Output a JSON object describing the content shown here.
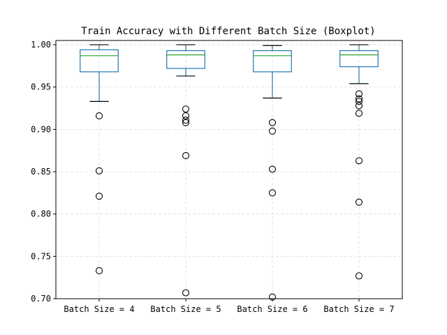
{
  "chart_data": {
    "type": "boxplot",
    "title": "Train Accuracy with Different Batch Size (Boxplot)",
    "xlabel": "",
    "ylabel": "",
    "ylim": [
      0.7,
      1.005
    ],
    "yticks": [
      0.7,
      0.75,
      0.8,
      0.85,
      0.9,
      0.95,
      1.0
    ],
    "ytick_labels": [
      "0.70",
      "0.75",
      "0.80",
      "0.85",
      "0.90",
      "0.95",
      "1.00"
    ],
    "grid": true,
    "categories": [
      "Batch Size = 4",
      "Batch Size = 5",
      "Batch Size = 6",
      "Batch Size = 7"
    ],
    "boxes": [
      {
        "whisker_low": 0.933,
        "q1": 0.968,
        "median": 0.987,
        "q3": 0.994,
        "whisker_high": 1.0,
        "outliers": [
          0.916,
          0.851,
          0.821,
          0.733
        ]
      },
      {
        "whisker_low": 0.963,
        "q1": 0.972,
        "median": 0.988,
        "q3": 0.993,
        "whisker_high": 1.0,
        "outliers": [
          0.924,
          0.916,
          0.911,
          0.908,
          0.869,
          0.707
        ]
      },
      {
        "whisker_low": 0.937,
        "q1": 0.968,
        "median": 0.987,
        "q3": 0.993,
        "whisker_high": 0.999,
        "outliers": [
          0.908,
          0.898,
          0.853,
          0.825,
          0.702
        ]
      },
      {
        "whisker_low": 0.954,
        "q1": 0.974,
        "median": 0.988,
        "q3": 0.993,
        "whisker_high": 1.0,
        "outliers": [
          0.942,
          0.936,
          0.933,
          0.928,
          0.919,
          0.863,
          0.814,
          0.727
        ]
      }
    ],
    "colors": {
      "box": "#1f77b4",
      "median": "#2ca02c",
      "caps": "#000000",
      "outliers": "#000000"
    }
  }
}
